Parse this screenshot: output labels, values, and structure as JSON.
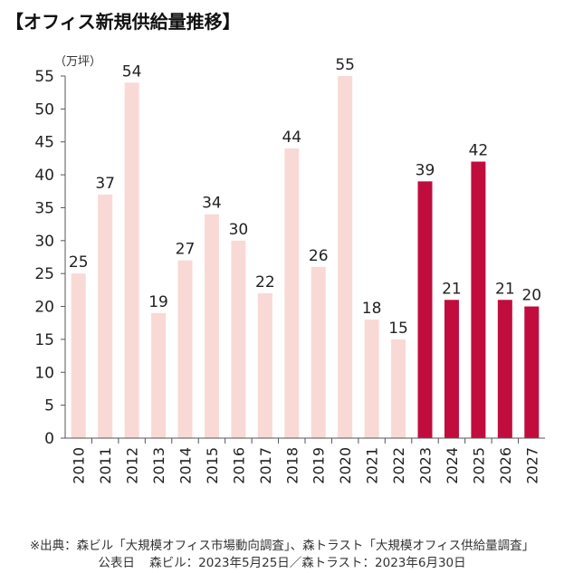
{
  "title": "【オフィス新規供給量推移】",
  "chart_data": {
    "type": "bar",
    "unit_label": "（万坪）",
    "categories": [
      "2010",
      "2011",
      "2012",
      "2013",
      "2014",
      "2015",
      "2016",
      "2017",
      "2018",
      "2019",
      "2020",
      "2021",
      "2022",
      "2023",
      "2024",
      "2025",
      "2026",
      "2027"
    ],
    "values": [
      25,
      37,
      54,
      19,
      27,
      34,
      30,
      22,
      44,
      26,
      55,
      18,
      15,
      39,
      21,
      42,
      21,
      20
    ],
    "data_labels": [
      "25",
      "37",
      "54",
      "19",
      "27",
      "34",
      "30",
      "22",
      "44",
      "26",
      "55",
      "18",
      "15",
      "39",
      "21",
      "42",
      "21",
      "20"
    ],
    "ylim": [
      0,
      55
    ],
    "yticks": [
      0,
      5,
      10,
      15,
      20,
      25,
      30,
      35,
      40,
      45,
      50,
      55
    ],
    "forecast_from": "2023",
    "colors": {
      "actual": "#f9d9d5",
      "forecast": "#c00d3d",
      "axis": "#555555"
    }
  },
  "source": {
    "line1": "※出典：森ビル「大規模オフィス市場動向調査」、森トラスト「大規模オフィス供給量調査」",
    "line2_label": "公表日",
    "line2_text": "森ビル：2023年5月25日／森トラスト：2023年6月30日"
  }
}
